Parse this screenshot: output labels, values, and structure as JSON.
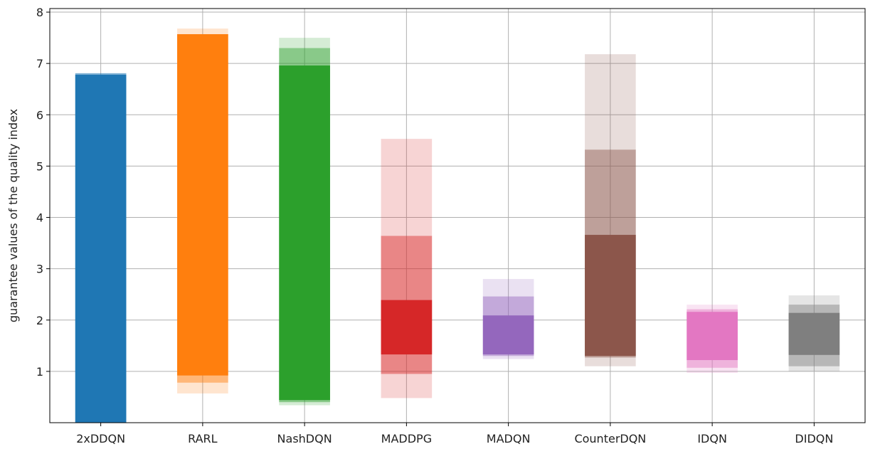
{
  "chart_data": {
    "type": "bar",
    "chart_kind": "floating range bars with nested bands",
    "title": "",
    "xlabel": "",
    "ylabel": "guarantee values of the quality index",
    "ylim": [
      0,
      8.07
    ],
    "yticks": [
      "1",
      "2",
      "3",
      "4",
      "5",
      "6",
      "7",
      "8"
    ],
    "grid": true,
    "legend": "none",
    "categories": [
      "2xDDQN",
      "RARL",
      "NashDQN",
      "MADDPG",
      "MADQN",
      "CounterDQN",
      "IDQN",
      "DIDQN"
    ],
    "colors": [
      "#1f77b4",
      "#ff7f0e",
      "#2ca02c",
      "#d62728",
      "#9467bd",
      "#8c564b",
      "#e377c2",
      "#7f7f7f"
    ],
    "band_opacity": {
      "outer": 0.2,
      "middle": 0.45,
      "inner": 1.0
    },
    "series": [
      {
        "outer": [
          0,
          6.81
        ],
        "middle": [
          0,
          6.81
        ],
        "inner": [
          0,
          6.78
        ]
      },
      {
        "outer": [
          0.57,
          7.68
        ],
        "middle": [
          0.78,
          7.57
        ],
        "inner": [
          0.92,
          7.57
        ]
      },
      {
        "outer": [
          0.34,
          7.5
        ],
        "middle": [
          0.4,
          7.3
        ],
        "inner": [
          0.44,
          6.96
        ]
      },
      {
        "outer": [
          0.48,
          5.53
        ],
        "middle": [
          0.95,
          3.64
        ],
        "inner": [
          1.33,
          2.39
        ]
      },
      {
        "outer": [
          1.24,
          2.8
        ],
        "middle": [
          1.3,
          2.46
        ],
        "inner": [
          1.33,
          2.09
        ]
      },
      {
        "outer": [
          1.1,
          7.18
        ],
        "middle": [
          1.27,
          5.32
        ],
        "inner": [
          1.3,
          3.66
        ]
      },
      {
        "outer": [
          0.97,
          2.3
        ],
        "middle": [
          1.07,
          2.21
        ],
        "inner": [
          1.22,
          2.16
        ]
      },
      {
        "outer": [
          1.0,
          2.48
        ],
        "middle": [
          1.1,
          2.3
        ],
        "inner": [
          1.32,
          2.14
        ]
      }
    ]
  }
}
